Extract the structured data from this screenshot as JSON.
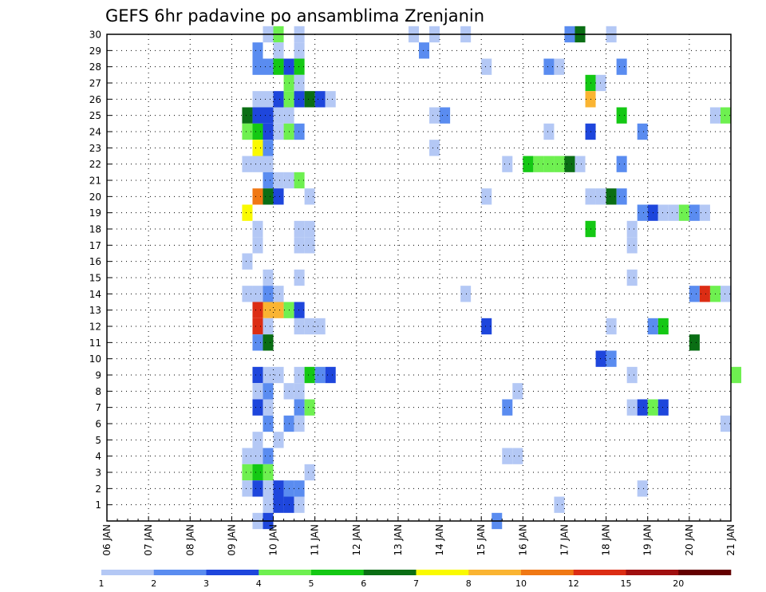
{
  "chart_data": {
    "type": "heatmap",
    "title": "GEFS 6hr padavine po ansamblima Zrenjanin",
    "x_tick_labels": [
      "06 JAN",
      "07 JAN",
      "08 JAN",
      "09 JAN",
      "10 JAN",
      "11 JAN",
      "12 JAN",
      "13 JAN",
      "14 JAN",
      "15 JAN",
      "16 JAN",
      "17 JAN",
      "18 JAN",
      "19 JAN",
      "20 JAN",
      "21 JAN"
    ],
    "y_tick_labels": [
      "1",
      "2",
      "3",
      "4",
      "5",
      "6",
      "7",
      "8",
      "9",
      "10",
      "11",
      "12",
      "13",
      "14",
      "15",
      "16",
      "17",
      "18",
      "19",
      "20",
      "21",
      "22",
      "23",
      "24",
      "25",
      "26",
      "27",
      "28",
      "29",
      "30"
    ],
    "grid": true,
    "colorbar": {
      "labels": [
        "1",
        "2",
        "3",
        "4",
        "5",
        "6",
        "7",
        "8",
        "10",
        "12",
        "15",
        "20"
      ],
      "colors": [
        "#b4c8f5",
        "#5a8cf0",
        "#1e46dc",
        "#6ef050",
        "#14c814",
        "#0a6e14",
        "#fafa00",
        "#fab432",
        "#f07814",
        "#dc2d14",
        "#a00f0f",
        "#640000"
      ]
    },
    "cells": [
      [
        30,
        15,
        0
      ],
      [
        30,
        16,
        3
      ],
      [
        30,
        18,
        0
      ],
      [
        30,
        29,
        0
      ],
      [
        30,
        31,
        0
      ],
      [
        30,
        34,
        0
      ],
      [
        30,
        44,
        1
      ],
      [
        30,
        45,
        5
      ],
      [
        30,
        48,
        0
      ],
      [
        29,
        14,
        1
      ],
      [
        29,
        16,
        0
      ],
      [
        29,
        18,
        0
      ],
      [
        29,
        30,
        1
      ],
      [
        28,
        14,
        1
      ],
      [
        28,
        15,
        1
      ],
      [
        28,
        16,
        4
      ],
      [
        28,
        17,
        2
      ],
      [
        28,
        18,
        4
      ],
      [
        28,
        36,
        0
      ],
      [
        28,
        42,
        1
      ],
      [
        28,
        43,
        0
      ],
      [
        28,
        49,
        1
      ],
      [
        27,
        17,
        3
      ],
      [
        27,
        18,
        0
      ],
      [
        27,
        46,
        4
      ],
      [
        27,
        47,
        0
      ],
      [
        26,
        14,
        0
      ],
      [
        26,
        15,
        0
      ],
      [
        26,
        16,
        2
      ],
      [
        26,
        17,
        3
      ],
      [
        26,
        18,
        2
      ],
      [
        26,
        19,
        5
      ],
      [
        26,
        20,
        2
      ],
      [
        26,
        21,
        0
      ],
      [
        26,
        46,
        7
      ],
      [
        25,
        13,
        5
      ],
      [
        25,
        14,
        2
      ],
      [
        25,
        15,
        2
      ],
      [
        25,
        16,
        0
      ],
      [
        25,
        17,
        0
      ],
      [
        25,
        31,
        0
      ],
      [
        25,
        32,
        1
      ],
      [
        25,
        49,
        4
      ],
      [
        25,
        58,
        0
      ],
      [
        25,
        59,
        3
      ],
      [
        24,
        13,
        3
      ],
      [
        24,
        14,
        4
      ],
      [
        24,
        15,
        2
      ],
      [
        24,
        16,
        0
      ],
      [
        24,
        17,
        3
      ],
      [
        24,
        18,
        1
      ],
      [
        24,
        42,
        0
      ],
      [
        24,
        46,
        2
      ],
      [
        24,
        51,
        1
      ],
      [
        23,
        14,
        6
      ],
      [
        23,
        15,
        1
      ],
      [
        23,
        31,
        0
      ],
      [
        22,
        13,
        0
      ],
      [
        22,
        14,
        0
      ],
      [
        22,
        15,
        0
      ],
      [
        22,
        38,
        0
      ],
      [
        22,
        40,
        4
      ],
      [
        22,
        41,
        3
      ],
      [
        22,
        42,
        3
      ],
      [
        22,
        43,
        3
      ],
      [
        22,
        44,
        5
      ],
      [
        22,
        45,
        0
      ],
      [
        22,
        49,
        1
      ],
      [
        21,
        15,
        1
      ],
      [
        21,
        16,
        0
      ],
      [
        21,
        17,
        0
      ],
      [
        21,
        18,
        3
      ],
      [
        20,
        14,
        8
      ],
      [
        20,
        15,
        5
      ],
      [
        20,
        16,
        2
      ],
      [
        20,
        19,
        0
      ],
      [
        20,
        36,
        0
      ],
      [
        20,
        46,
        0
      ],
      [
        20,
        47,
        0
      ],
      [
        20,
        48,
        5
      ],
      [
        20,
        49,
        1
      ],
      [
        19,
        13,
        6
      ],
      [
        19,
        51,
        1
      ],
      [
        19,
        52,
        2
      ],
      [
        19,
        53,
        0
      ],
      [
        19,
        54,
        0
      ],
      [
        19,
        55,
        3
      ],
      [
        19,
        56,
        1
      ],
      [
        19,
        57,
        0
      ],
      [
        18,
        14,
        0
      ],
      [
        18,
        18,
        0
      ],
      [
        18,
        19,
        0
      ],
      [
        18,
        46,
        4
      ],
      [
        18,
        50,
        0
      ],
      [
        17,
        14,
        0
      ],
      [
        17,
        18,
        0
      ],
      [
        17,
        19,
        0
      ],
      [
        17,
        50,
        0
      ],
      [
        16,
        13,
        0
      ],
      [
        15,
        15,
        0
      ],
      [
        15,
        18,
        0
      ],
      [
        15,
        50,
        0
      ],
      [
        14,
        13,
        0
      ],
      [
        14,
        14,
        0
      ],
      [
        14,
        15,
        1
      ],
      [
        14,
        16,
        0
      ],
      [
        14,
        34,
        0
      ],
      [
        14,
        56,
        1
      ],
      [
        14,
        57,
        9
      ],
      [
        14,
        58,
        3
      ],
      [
        14,
        59,
        0
      ],
      [
        13,
        14,
        9
      ],
      [
        13,
        15,
        7
      ],
      [
        13,
        16,
        7
      ],
      [
        13,
        17,
        3
      ],
      [
        13,
        18,
        2
      ],
      [
        12,
        14,
        9
      ],
      [
        12,
        15,
        0
      ],
      [
        12,
        18,
        0
      ],
      [
        12,
        19,
        0
      ],
      [
        12,
        20,
        0
      ],
      [
        12,
        36,
        2
      ],
      [
        12,
        48,
        0
      ],
      [
        12,
        52,
        1
      ],
      [
        12,
        53,
        4
      ],
      [
        11,
        14,
        1
      ],
      [
        11,
        15,
        5
      ],
      [
        11,
        56,
        5
      ],
      [
        10,
        47,
        2
      ],
      [
        10,
        48,
        1
      ],
      [
        9,
        14,
        2
      ],
      [
        9,
        15,
        0
      ],
      [
        9,
        16,
        0
      ],
      [
        9,
        18,
        0
      ],
      [
        9,
        19,
        4
      ],
      [
        9,
        20,
        1
      ],
      [
        9,
        21,
        2
      ],
      [
        9,
        50,
        0
      ],
      [
        9,
        60,
        3
      ],
      [
        8,
        14,
        0
      ],
      [
        8,
        15,
        1
      ],
      [
        8,
        17,
        0
      ],
      [
        8,
        18,
        0
      ],
      [
        8,
        39,
        0
      ],
      [
        7,
        14,
        2
      ],
      [
        7,
        15,
        0
      ],
      [
        7,
        18,
        1
      ],
      [
        7,
        19,
        3
      ],
      [
        7,
        38,
        1
      ],
      [
        7,
        50,
        0
      ],
      [
        7,
        51,
        2
      ],
      [
        7,
        52,
        3
      ],
      [
        7,
        53,
        2
      ],
      [
        6,
        15,
        1
      ],
      [
        6,
        17,
        1
      ],
      [
        6,
        18,
        0
      ],
      [
        6,
        59,
        0
      ],
      [
        5,
        14,
        0
      ],
      [
        5,
        16,
        0
      ],
      [
        4,
        13,
        0
      ],
      [
        4,
        14,
        0
      ],
      [
        4,
        15,
        1
      ],
      [
        4,
        38,
        0
      ],
      [
        4,
        39,
        0
      ],
      [
        3,
        13,
        3
      ],
      [
        3,
        14,
        4
      ],
      [
        3,
        15,
        3
      ],
      [
        3,
        19,
        0
      ],
      [
        2,
        13,
        0
      ],
      [
        2,
        14,
        2
      ],
      [
        2,
        15,
        0
      ],
      [
        2,
        16,
        2
      ],
      [
        2,
        17,
        1
      ],
      [
        2,
        18,
        1
      ],
      [
        2,
        51,
        0
      ],
      [
        1,
        15,
        0
      ],
      [
        1,
        16,
        2
      ],
      [
        1,
        17,
        2
      ],
      [
        1,
        18,
        0
      ],
      [
        1,
        43,
        0
      ],
      [
        0,
        14,
        0
      ],
      [
        0,
        15,
        2
      ],
      [
        0,
        37,
        1
      ]
    ]
  }
}
